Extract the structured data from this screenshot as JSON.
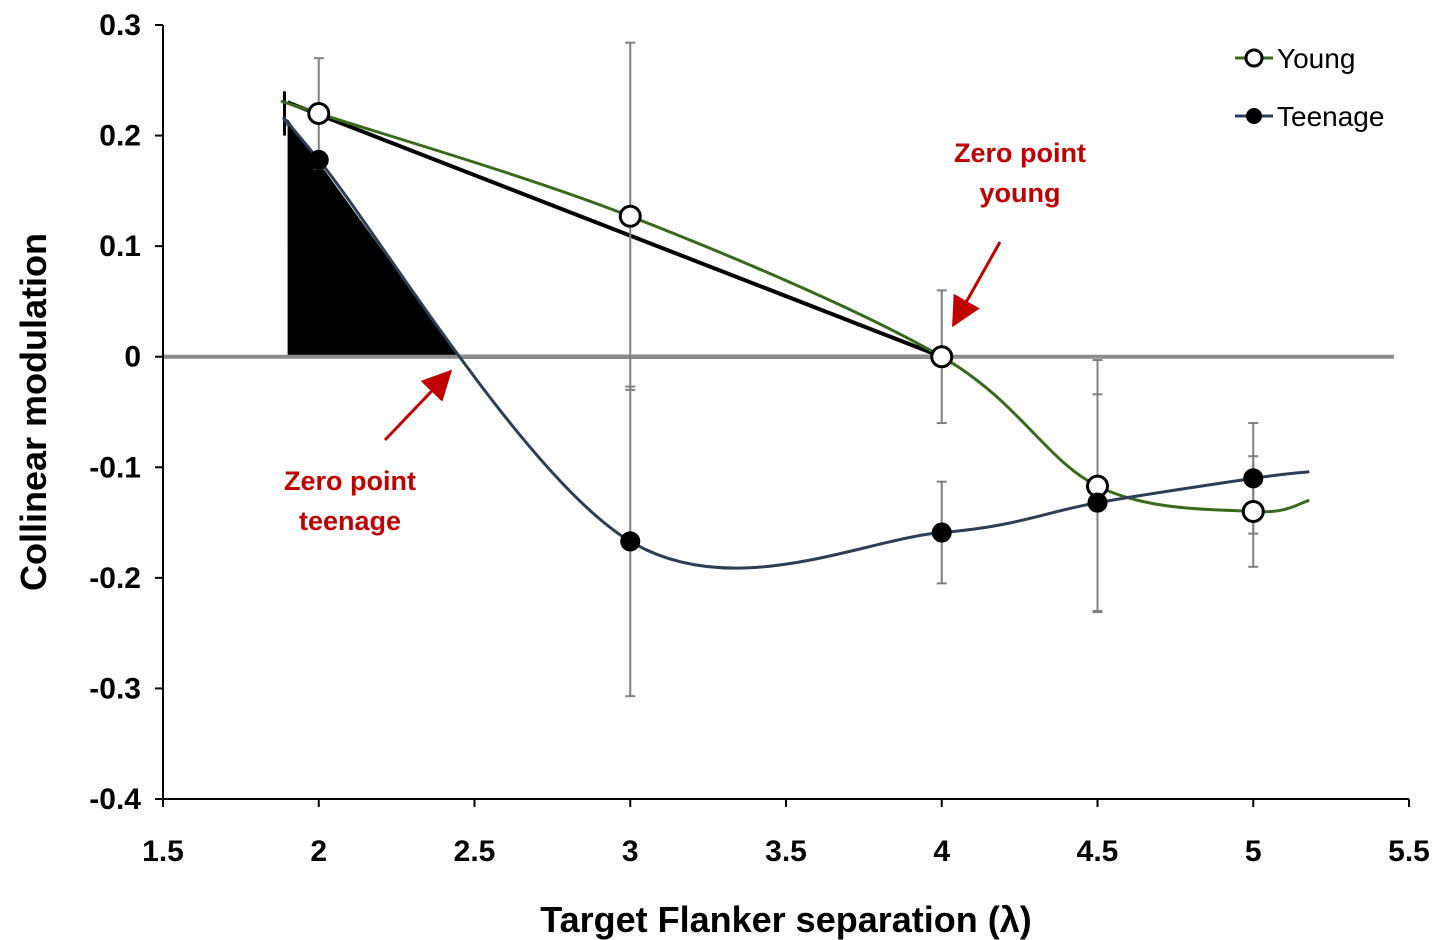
{
  "chart_data": {
    "type": "line",
    "xlabel": "Target Flanker separation (λ)",
    "ylabel": "Collinear modulation",
    "xlim": [
      1.5,
      5.5
    ],
    "ylim": [
      -0.4,
      0.3
    ],
    "xticks": [
      "1.5",
      "2",
      "2.5",
      "3",
      "3.5",
      "4",
      "4.5",
      "5",
      "5.5"
    ],
    "yticks": [
      "0.3",
      "0.2",
      "0.1",
      "0",
      "-0.1",
      "-0.2",
      "-0.3",
      "-0.4"
    ],
    "grid": false,
    "legend_position": "top-right",
    "x": [
      2,
      3,
      4,
      4.5,
      5
    ],
    "series": [
      {
        "name": "Young",
        "marker": "open-circle",
        "color": "#3a6a1e",
        "values": [
          0.22,
          0.127,
          0.0,
          -0.117,
          -0.14
        ],
        "error": [
          0.05,
          0.157,
          0.06,
          0.114,
          0.05
        ]
      },
      {
        "name": "Teenage",
        "marker": "filled-circle",
        "color": "#2f3e55",
        "values": [
          0.178,
          -0.167,
          -0.159,
          -0.132,
          -0.11
        ],
        "error": [
          0.0,
          0.14,
          0.046,
          0.098,
          0.05
        ]
      }
    ],
    "annotations": [
      {
        "line1": "Zero point",
        "line2": "young",
        "points_to_x": 4.0,
        "points_to_y": 0.0
      },
      {
        "line1": "Zero point",
        "line2": "teenage",
        "points_to_x": 2.45,
        "points_to_y": 0.0
      }
    ],
    "colors": {
      "zero_line": "#8c8c8c",
      "arrow": "#c00000",
      "error_bar": "#808080"
    }
  }
}
